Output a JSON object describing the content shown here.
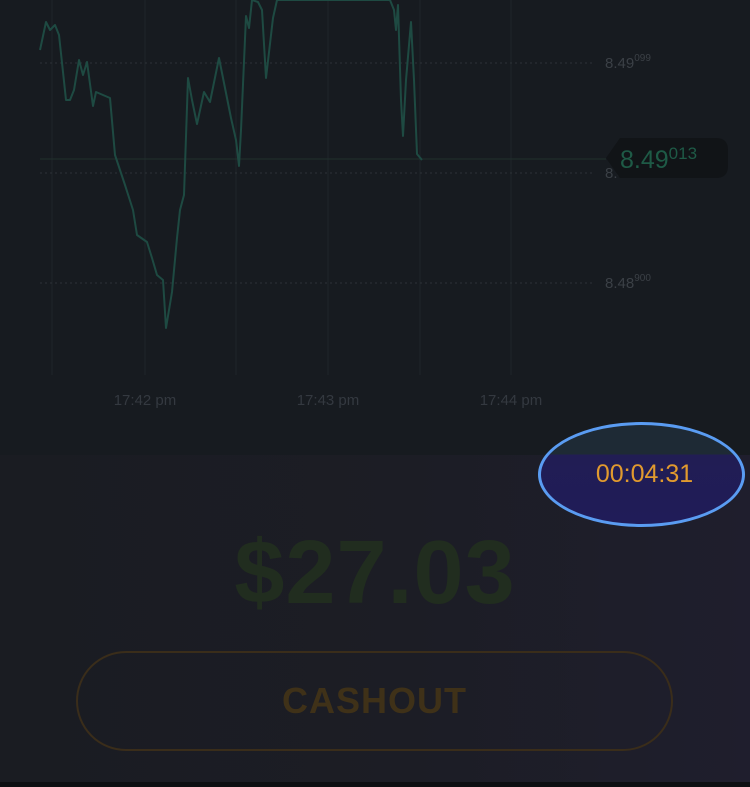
{
  "chart": {
    "price_levels": [
      {
        "main": "8.49",
        "sup": "099"
      },
      {
        "main": "8.4",
        "sup": ""
      },
      {
        "main": "8.48",
        "sup": "900"
      }
    ],
    "time_labels": [
      "17:42 pm",
      "17:43 pm",
      "17:44 pm"
    ],
    "current_price": {
      "main": "8.49",
      "sup": "013"
    },
    "line_color": "#1e4a42"
  },
  "trade": {
    "timer": "00:04:31",
    "amount": "$27.03",
    "cashout_label": "CASHOUT"
  },
  "colors": {
    "timer_text": "#e19a2e",
    "highlight_ring": "#5a9cf2",
    "amount_text": "#212d1f",
    "cashout_text": "#3f3118"
  }
}
